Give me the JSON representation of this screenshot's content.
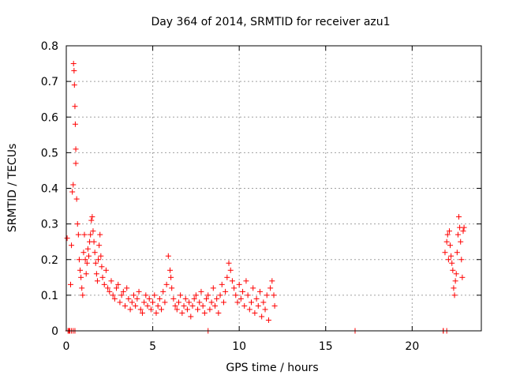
{
  "chart_data": {
    "type": "scatter",
    "title": "Day 364 of 2014, SRMTID for receiver azu1",
    "xlabel": "GPS time / hours",
    "ylabel": "SRMTID / TECUs",
    "xlim": [
      0,
      24
    ],
    "ylim": [
      0,
      0.8
    ],
    "xticks": [
      0,
      5,
      10,
      15,
      20
    ],
    "yticks": [
      0,
      0.1,
      0.2,
      0.3,
      0.4,
      0.5,
      0.6,
      0.7,
      0.8
    ],
    "xtick_labels": [
      "0",
      "5",
      "10",
      "15",
      "20"
    ],
    "ytick_labels": [
      "0",
      "0.1",
      "0.2",
      "0.3",
      "0.4",
      "0.5",
      "0.6",
      "0.7",
      "0.8"
    ],
    "grid": true,
    "marker": "+",
    "color": "#ff0000",
    "series": [
      {
        "name": "azu1",
        "x": [
          0.05,
          0.15,
          0.2,
          0.25,
          0.3,
          0.35,
          0.4,
          0.42,
          0.45,
          0.47,
          0.5,
          0.52,
          0.55,
          0.55,
          0.6,
          0.65,
          0.7,
          0.75,
          0.8,
          0.85,
          0.9,
          0.95,
          1.0,
          1.05,
          1.1,
          1.15,
          1.2,
          1.25,
          1.3,
          1.35,
          1.4,
          1.45,
          1.5,
          1.55,
          1.6,
          1.65,
          1.7,
          1.75,
          1.8,
          1.85,
          1.9,
          1.95,
          2.0,
          2.05,
          2.1,
          2.2,
          2.3,
          2.4,
          2.5,
          2.6,
          2.7,
          2.8,
          2.9,
          3.0,
          3.1,
          3.2,
          3.3,
          3.4,
          3.5,
          3.6,
          3.7,
          3.8,
          3.9,
          4.0,
          4.1,
          4.2,
          4.3,
          4.4,
          4.5,
          4.6,
          4.7,
          4.8,
          4.9,
          5.0,
          5.1,
          5.2,
          5.3,
          5.4,
          5.5,
          5.6,
          5.7,
          5.8,
          5.9,
          6.0,
          6.05,
          6.1,
          6.2,
          6.3,
          6.4,
          6.5,
          6.6,
          6.7,
          6.8,
          6.9,
          7.0,
          7.1,
          7.2,
          7.3,
          7.4,
          7.5,
          7.6,
          7.7,
          7.8,
          7.9,
          8.0,
          8.1,
          8.2,
          8.3,
          8.4,
          8.5,
          8.6,
          8.7,
          8.8,
          8.9,
          9.0,
          9.1,
          9.2,
          9.3,
          9.4,
          9.5,
          9.6,
          9.7,
          9.8,
          9.9,
          10.0,
          10.1,
          10.2,
          10.3,
          10.4,
          10.5,
          10.6,
          10.7,
          10.8,
          10.9,
          11.0,
          11.1,
          11.2,
          11.3,
          11.4,
          11.5,
          11.6,
          11.7,
          11.8,
          11.9,
          12.0,
          12.05,
          16.7,
          21.8,
          21.9,
          22.0,
          22.05,
          22.1,
          22.15,
          22.2,
          22.25,
          22.3,
          22.35,
          22.4,
          22.45,
          22.5,
          22.55,
          22.6,
          22.65,
          22.7,
          22.75,
          22.8,
          22.85,
          22.9,
          22.95,
          23.0,
          0.1,
          0.2,
          0.3,
          0.4,
          0.5,
          8.2,
          21.8,
          22.0
        ],
        "y": [
          0.26,
          0.0,
          0.0,
          0.13,
          0.24,
          0.39,
          0.41,
          0.75,
          0.73,
          0.69,
          0.63,
          0.58,
          0.51,
          0.47,
          0.37,
          0.3,
          0.27,
          0.2,
          0.17,
          0.15,
          0.12,
          0.1,
          0.22,
          0.27,
          0.2,
          0.16,
          0.19,
          0.23,
          0.21,
          0.25,
          0.27,
          0.31,
          0.32,
          0.28,
          0.25,
          0.22,
          0.19,
          0.16,
          0.14,
          0.2,
          0.24,
          0.27,
          0.21,
          0.18,
          0.15,
          0.13,
          0.17,
          0.12,
          0.11,
          0.14,
          0.1,
          0.09,
          0.12,
          0.13,
          0.08,
          0.1,
          0.11,
          0.07,
          0.12,
          0.09,
          0.06,
          0.08,
          0.1,
          0.07,
          0.09,
          0.11,
          0.06,
          0.05,
          0.08,
          0.1,
          0.07,
          0.09,
          0.06,
          0.08,
          0.1,
          0.05,
          0.07,
          0.09,
          0.06,
          0.11,
          0.08,
          0.13,
          0.21,
          0.17,
          0.15,
          0.12,
          0.09,
          0.07,
          0.06,
          0.08,
          0.1,
          0.05,
          0.07,
          0.09,
          0.06,
          0.08,
          0.04,
          0.07,
          0.09,
          0.1,
          0.06,
          0.08,
          0.11,
          0.07,
          0.05,
          0.09,
          0.1,
          0.06,
          0.08,
          0.12,
          0.07,
          0.09,
          0.05,
          0.1,
          0.13,
          0.08,
          0.11,
          0.15,
          0.19,
          0.17,
          0.14,
          0.12,
          0.1,
          0.08,
          0.13,
          0.09,
          0.11,
          0.07,
          0.14,
          0.1,
          0.06,
          0.08,
          0.12,
          0.05,
          0.09,
          0.07,
          0.11,
          0.04,
          0.08,
          0.06,
          0.1,
          0.03,
          0.12,
          0.14,
          0.1,
          0.07,
          0.0,
          0.0,
          0.22,
          0.25,
          0.27,
          0.2,
          0.28,
          0.24,
          0.21,
          0.19,
          0.17,
          0.12,
          0.1,
          0.14,
          0.16,
          0.22,
          0.27,
          0.32,
          0.29,
          0.25,
          0.2,
          0.15,
          0.28,
          0.29,
          0.0,
          0.0,
          0.0,
          0.0,
          0.0,
          0.0,
          0.0,
          0.0
        ]
      }
    ]
  }
}
